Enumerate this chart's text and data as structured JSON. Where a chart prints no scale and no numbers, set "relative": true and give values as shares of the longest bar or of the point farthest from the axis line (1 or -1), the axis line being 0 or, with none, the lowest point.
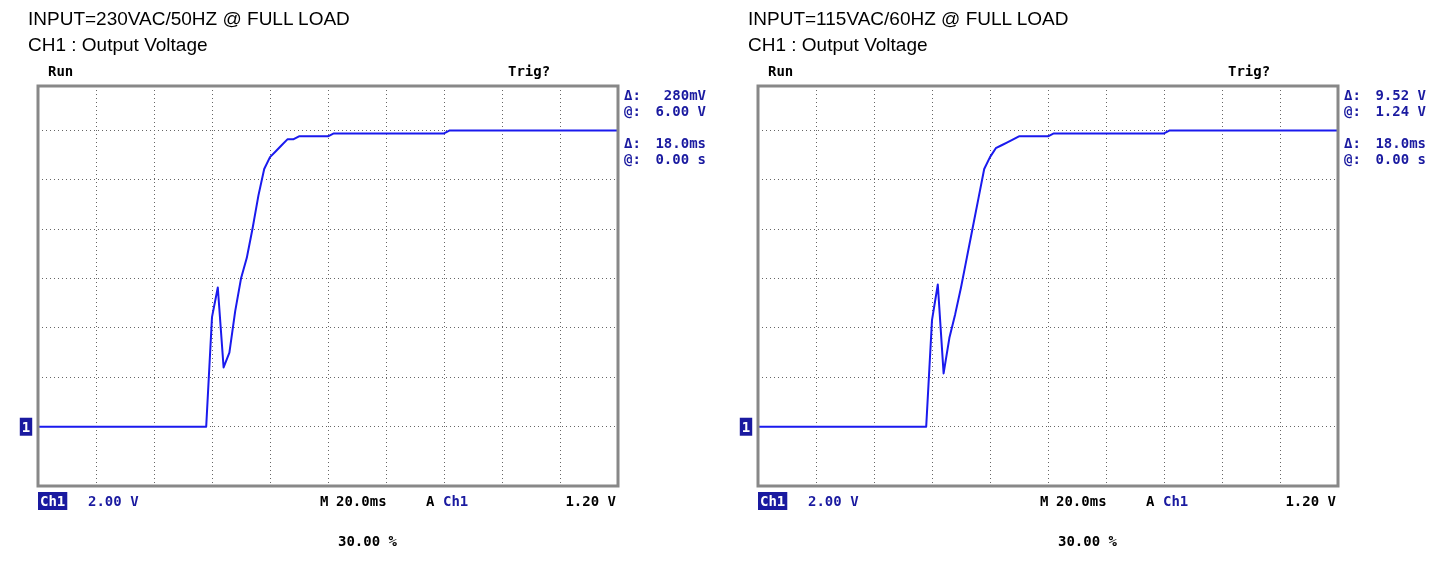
{
  "chart_data": [
    {
      "type": "line",
      "title": "INPUT=230VAC/50HZ @ FULL LOAD",
      "subtitle": "CH1 : Output Voltage",
      "relative": true,
      "categories": [
        null,
        null,
        null,
        null,
        null,
        null,
        null,
        null,
        null,
        null,
        null,
        null,
        null,
        null,
        null,
        null,
        null,
        null,
        null,
        null,
        null,
        null,
        null,
        null,
        null,
        null,
        null,
        null,
        null,
        null,
        null,
        null,
        null,
        null,
        null,
        null,
        null,
        null,
        null,
        null,
        null,
        null,
        null,
        null,
        null,
        null,
        null,
        null,
        null,
        null,
        null,
        null,
        null,
        null,
        null,
        null,
        null,
        null,
        null,
        null,
        null,
        null,
        null,
        null,
        null,
        null,
        null,
        null,
        null,
        null,
        null,
        null,
        null,
        null,
        null,
        null,
        null,
        null,
        null,
        null,
        null,
        null,
        null,
        null,
        null,
        null,
        null,
        null,
        null,
        null,
        null,
        null,
        null,
        null,
        null,
        null,
        null,
        null,
        null,
        null,
        null
      ],
      "series": [
        {
          "color": "#1a1aee",
          "values": [
            0,
            0,
            0,
            0,
            0,
            0,
            0,
            0,
            0,
            0,
            0,
            0,
            0,
            0,
            0,
            0,
            0,
            0,
            0,
            0,
            0,
            0,
            0,
            0,
            0,
            0,
            0,
            0,
            0,
            0,
            0.37,
            0.47,
            0.2,
            0.25,
            0.39,
            0.5,
            0.57,
            0.67,
            0.78,
            0.87,
            0.91,
            0.93,
            0.95,
            0.97,
            0.97,
            0.98,
            0.98,
            0.98,
            0.98,
            0.98,
            0.98,
            0.99,
            0.99,
            0.99,
            0.99,
            0.99,
            0.99,
            0.99,
            0.99,
            0.99,
            0.99,
            0.99,
            0.99,
            0.99,
            0.99,
            0.99,
            0.99,
            0.99,
            0.99,
            0.99,
            0.99,
            1,
            1,
            1,
            1,
            1,
            1,
            1,
            1,
            1,
            1,
            1,
            1,
            1,
            1,
            1,
            1,
            1,
            1,
            1,
            1,
            1,
            1,
            1,
            1,
            1,
            1,
            1,
            1,
            1,
            1
          ]
        }
      ],
      "tick_labels": false,
      "grid": true,
      "annotations": [
        "Run",
        "Trig?",
        "Δ:",
        "280mV",
        "@:",
        "6.00 V",
        "Δ:",
        "18.0ms",
        "@:",
        "0.00 s",
        "Ch1",
        "2.00 V",
        "M",
        "20.0ms",
        "A",
        "Ch1",
        "1.20 V",
        "30.00 %",
        "1"
      ]
    },
    {
      "type": "line",
      "title": "INPUT=115VAC/60HZ @ FULL LOAD",
      "subtitle": "CH1 : Output Voltage",
      "relative": true,
      "categories": [
        null,
        null,
        null,
        null,
        null,
        null,
        null,
        null,
        null,
        null,
        null,
        null,
        null,
        null,
        null,
        null,
        null,
        null,
        null,
        null,
        null,
        null,
        null,
        null,
        null,
        null,
        null,
        null,
        null,
        null,
        null,
        null,
        null,
        null,
        null,
        null,
        null,
        null,
        null,
        null,
        null,
        null,
        null,
        null,
        null,
        null,
        null,
        null,
        null,
        null,
        null,
        null,
        null,
        null,
        null,
        null,
        null,
        null,
        null,
        null,
        null,
        null,
        null,
        null,
        null,
        null,
        null,
        null,
        null,
        null,
        null,
        null,
        null,
        null,
        null,
        null,
        null,
        null,
        null,
        null,
        null,
        null,
        null,
        null,
        null,
        null,
        null,
        null,
        null,
        null,
        null,
        null,
        null,
        null,
        null,
        null,
        null,
        null,
        null,
        null,
        null
      ],
      "series": [
        {
          "color": "#1a1aee",
          "values": [
            0,
            0,
            0,
            0,
            0,
            0,
            0,
            0,
            0,
            0,
            0,
            0,
            0,
            0,
            0,
            0,
            0,
            0,
            0,
            0,
            0,
            0,
            0,
            0,
            0,
            0,
            0,
            0,
            0,
            0,
            0.36,
            0.48,
            0.18,
            0.3,
            0.38,
            0.47,
            0.57,
            0.67,
            0.77,
            0.87,
            0.91,
            0.94,
            0.95,
            0.96,
            0.97,
            0.98,
            0.98,
            0.98,
            0.98,
            0.98,
            0.98,
            0.99,
            0.99,
            0.99,
            0.99,
            0.99,
            0.99,
            0.99,
            0.99,
            0.99,
            0.99,
            0.99,
            0.99,
            0.99,
            0.99,
            0.99,
            0.99,
            0.99,
            0.99,
            0.99,
            0.99,
            1,
            1,
            1,
            1,
            1,
            1,
            1,
            1,
            1,
            1,
            1,
            1,
            1,
            1,
            1,
            1,
            1,
            1,
            1,
            1,
            1,
            1,
            1,
            1,
            1,
            1,
            1,
            1,
            1,
            1
          ]
        }
      ],
      "tick_labels": false,
      "grid": true,
      "annotations": [
        "Run",
        "Trig?",
        "Δ:",
        "9.52 V",
        "@:",
        "1.24 V",
        "Δ:",
        "18.0ms",
        "@:",
        "0.00 s",
        "Ch1",
        "2.00 V",
        "M",
        "20.0ms",
        "A",
        "Ch1",
        "1.20 V",
        "30.00 %",
        "1"
      ]
    }
  ]
}
